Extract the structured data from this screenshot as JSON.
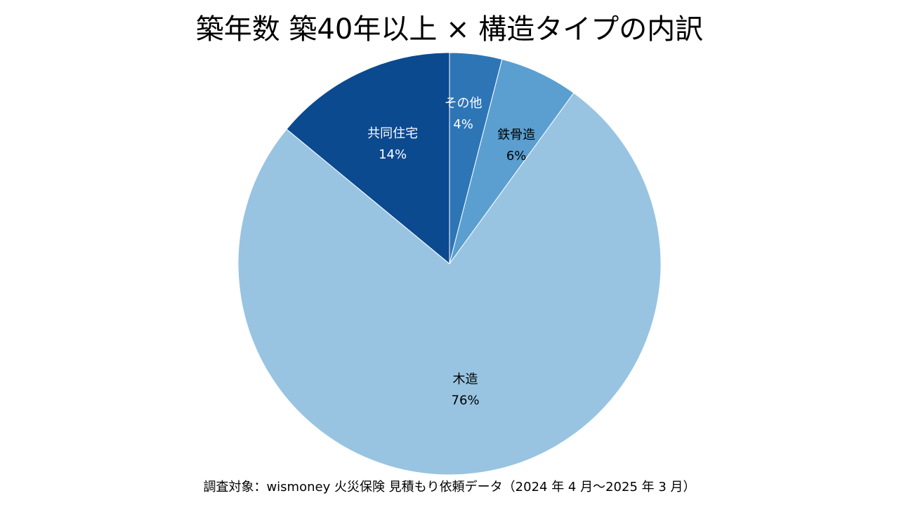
{
  "chart_data": {
    "type": "pie",
    "title": "築年数 築40年以上 × 構造タイプの内訳",
    "start_angle_deg": 0,
    "direction": "clockwise",
    "slices": [
      {
        "label": "その他",
        "value": 4,
        "value_label": "4%",
        "color": "#2e75b6",
        "label_color": "#ffffff"
      },
      {
        "label": "鉄骨造",
        "value": 6,
        "value_label": "6%",
        "color": "#5b9fd0",
        "label_color": "#000000"
      },
      {
        "label": "木造",
        "value": 76,
        "value_label": "76%",
        "color": "#98c4e1",
        "label_color": "#000000"
      },
      {
        "label": "共同住宅",
        "value": 14,
        "value_label": "14%",
        "color": "#0b4a8f",
        "label_color": "#ffffff"
      }
    ],
    "legend": "none"
  },
  "footnote": "調査対象：wismoney 火災保険 見積もり依頼データ（2024 年 4 月〜2025 年 3 月）"
}
